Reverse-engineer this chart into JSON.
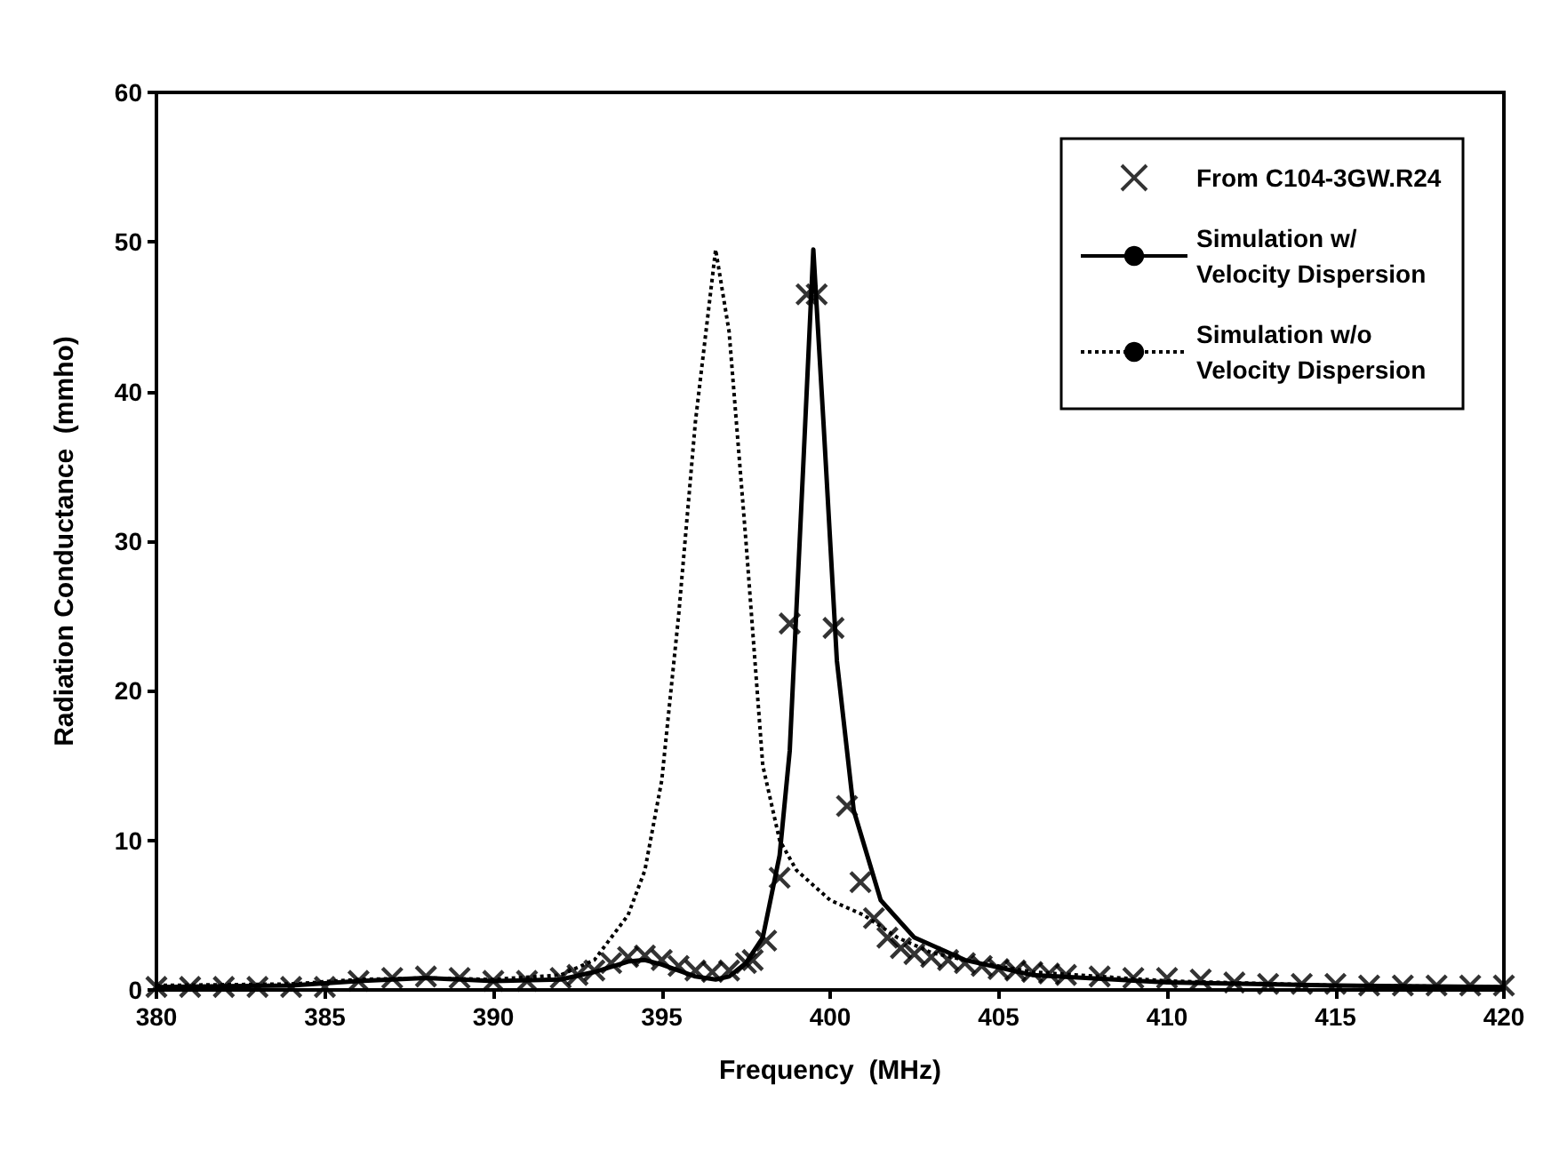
{
  "chart_data": {
    "type": "line",
    "xlabel": "Frequency  (MHz)",
    "ylabel": "Radiation Conductance  (mmho)",
    "xlim": [
      380,
      420
    ],
    "xticks": [
      380,
      385,
      390,
      395,
      400,
      405,
      410,
      415,
      420
    ],
    "ylim": [
      0,
      60
    ],
    "yticks": [
      0,
      10,
      20,
      30,
      40,
      50,
      60
    ],
    "grid": false,
    "legend": "top right",
    "series": [
      {
        "name": "From C104-3GW.R24",
        "type": "scatter",
        "marker": "cross",
        "color": "#000000",
        "x": [
          380,
          381,
          382,
          383,
          384,
          385,
          386,
          387,
          388,
          389,
          390,
          391,
          392,
          392.5,
          393,
          393.5,
          394,
          394.5,
          395,
          395.5,
          396,
          396.5,
          397,
          397.5,
          397.7,
          398.1,
          398.5,
          398.8,
          399.3,
          399.6,
          400.1,
          400.5,
          400.9,
          401.3,
          401.7,
          402.1,
          402.5,
          403,
          403.5,
          404,
          404.5,
          405,
          405.5,
          406,
          406.5,
          407,
          408,
          409,
          410,
          411,
          412,
          413,
          414,
          415,
          416,
          417,
          418,
          419,
          420
        ],
        "values": [
          0.2,
          0.2,
          0.2,
          0.2,
          0.2,
          0.2,
          0.6,
          0.8,
          0.9,
          0.8,
          0.6,
          0.6,
          0.8,
          1,
          1.3,
          1.8,
          2.2,
          2.3,
          2,
          1.6,
          1.3,
          1.2,
          1.3,
          1.8,
          2,
          3.3,
          7.5,
          24.5,
          46.5,
          46.5,
          24.2,
          12.3,
          7.2,
          4.8,
          3.5,
          2.8,
          2.4,
          2.2,
          2,
          1.8,
          1.6,
          1.4,
          1.3,
          1.2,
          1.1,
          1,
          0.9,
          0.8,
          0.8,
          0.7,
          0.5,
          0.4,
          0.4,
          0.4,
          0.3,
          0.3,
          0.3,
          0.3,
          0.3
        ]
      },
      {
        "name": "Simulation w/ Velocity Dispersion",
        "line_style": "solid",
        "color": "#000000",
        "x": [
          380,
          384,
          386,
          388,
          390,
          392,
          393,
          394,
          394.5,
          395,
          396,
          396.6,
          397,
          397.5,
          398,
          398.5,
          398.8,
          399.2,
          399.5,
          399.8,
          400.2,
          400.7,
          401.5,
          402.5,
          404,
          406,
          410,
          415,
          420
        ],
        "values": [
          0.2,
          0.3,
          0.6,
          0.8,
          0.6,
          0.7,
          1.2,
          1.9,
          2,
          1.7,
          0.9,
          0.7,
          0.9,
          1.8,
          3.5,
          9,
          16,
          35,
          49.5,
          38,
          22,
          12,
          6,
          3.5,
          2,
          1,
          0.5,
          0.3,
          0.2
        ]
      },
      {
        "name": "Simulation w/o Velocity Dispersion",
        "line_style": "dotted",
        "color": "#000000",
        "x": [
          380,
          384,
          386,
          388,
          390,
          392,
          393,
          394,
          394.5,
          395,
          395.5,
          396,
          396.6,
          397,
          397.5,
          398,
          398.5,
          399,
          400,
          401,
          402,
          403,
          404,
          406,
          410,
          415,
          420
        ],
        "values": [
          0.3,
          0.4,
          0.7,
          0.8,
          0.7,
          1,
          2,
          5,
          8,
          14,
          25,
          38,
          49.5,
          44,
          30,
          15,
          10,
          8,
          6,
          5,
          3.5,
          2.5,
          2,
          1.2,
          0.6,
          0.3,
          0.2
        ]
      }
    ]
  }
}
